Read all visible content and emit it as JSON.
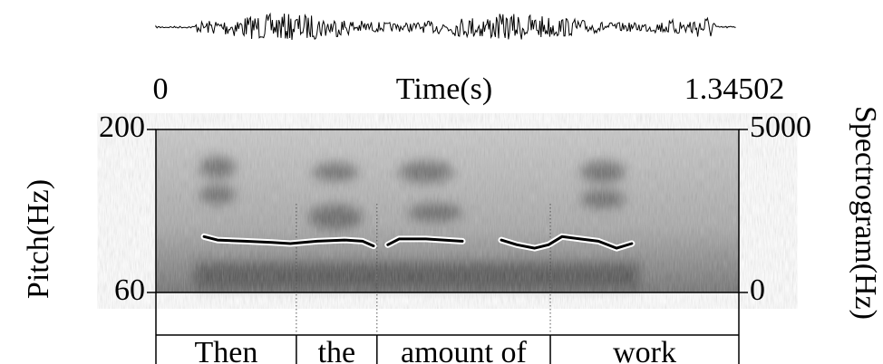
{
  "chart_data": {
    "type": "line",
    "title": "Time(s)",
    "ylabel": "Pitch(Hz)",
    "y2label": "Spectrogram(Hz)",
    "xlim": [
      0,
      1.34502
    ],
    "xticks": [
      0,
      1.34502
    ],
    "ylim": [
      60,
      200
    ],
    "yticks": [
      60,
      200
    ],
    "y2lim": [
      0,
      5000
    ],
    "y2ticks": [
      0,
      5000
    ],
    "x": [
      0.111,
      0.142,
      0.205,
      0.268,
      0.31,
      0.372,
      0.435,
      0.477,
      0.502,
      null,
      0.535,
      0.561,
      0.623,
      0.707,
      null,
      0.797,
      0.833,
      0.874,
      0.906,
      0.937,
      0.979,
      1.021,
      1.063,
      1.098
    ],
    "series": [
      {
        "name": "Pitch",
        "color": "#000000",
        "values": [
          108,
          105,
          104,
          103,
          102,
          104,
          105,
          104,
          100,
          null,
          101,
          106,
          106,
          104,
          null,
          105,
          101,
          98,
          101,
          108,
          106,
          104,
          98,
          102
        ]
      }
    ],
    "intervals": [
      {
        "text": "Then",
        "start": 0,
        "end": 0.324
      },
      {
        "text": "the",
        "start": 0.324,
        "end": 0.51
      },
      {
        "text": "amount of",
        "start": 0.51,
        "end": 0.91
      },
      {
        "text": "work",
        "start": 0.91,
        "end": 1.34502
      }
    ]
  }
}
